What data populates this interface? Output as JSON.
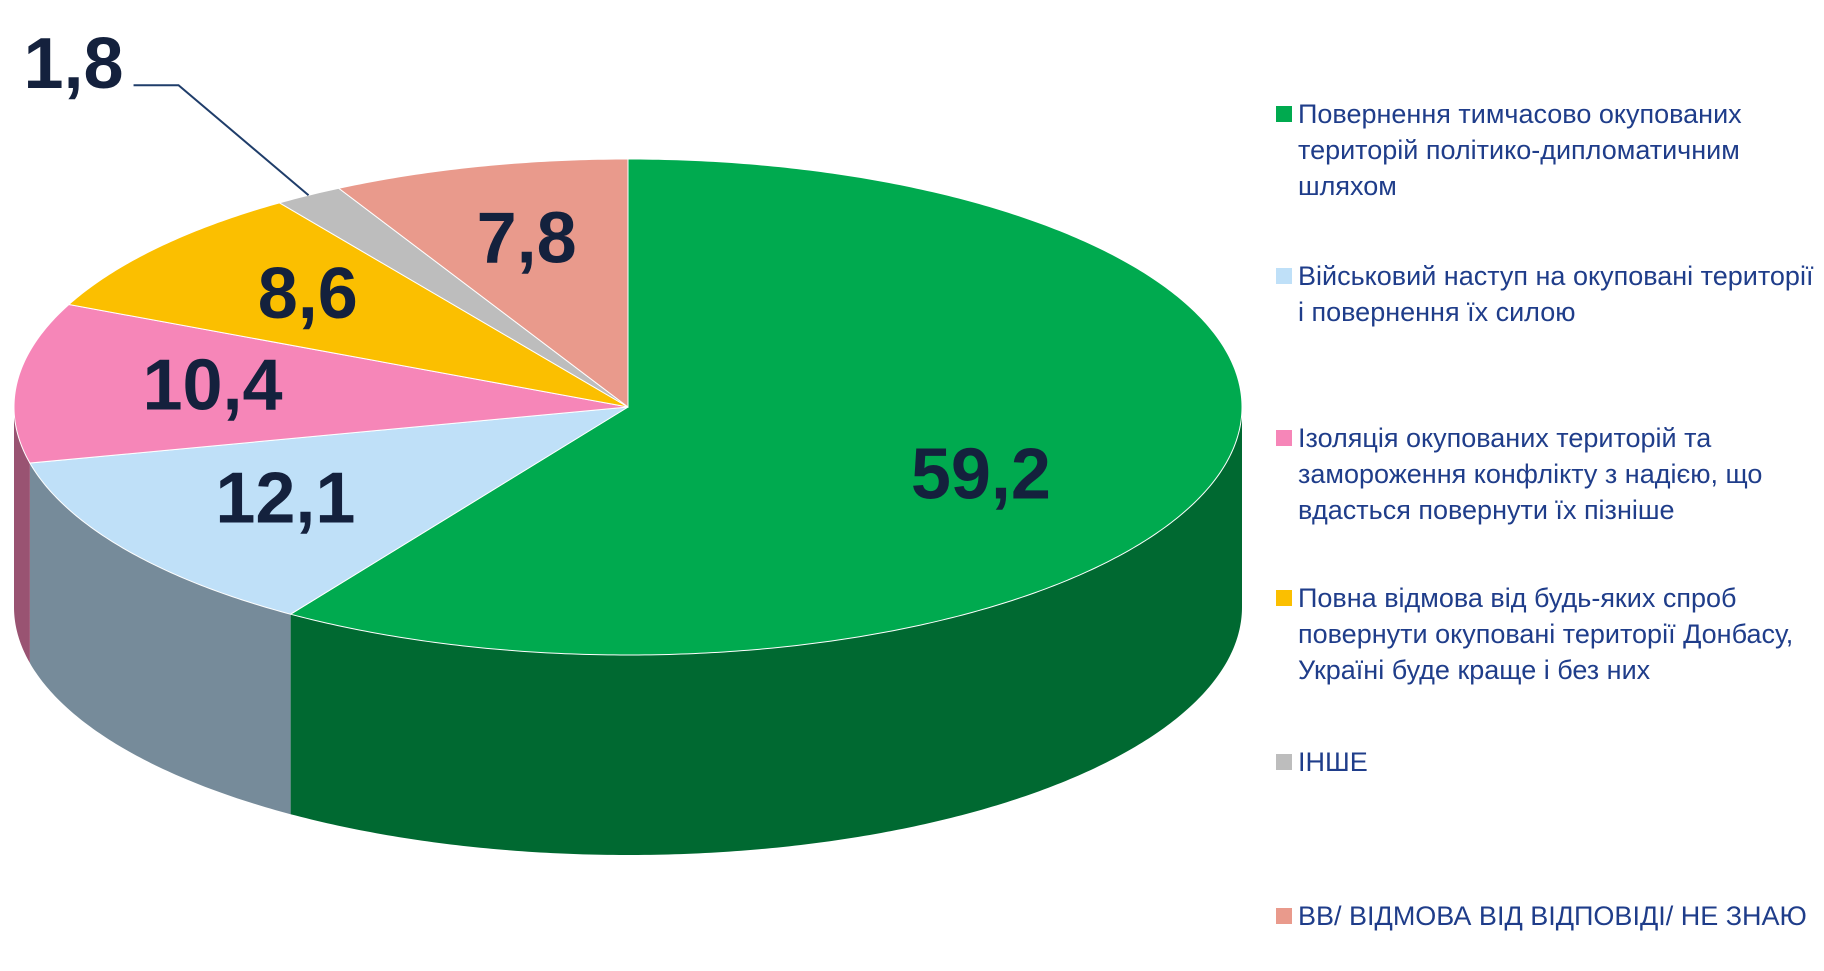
{
  "chart_data": {
    "type": "pie",
    "categories": [
      "Повернення тимчасово окупованих територій політико-дипломатичним шляхом",
      "Військовий наступ на окуповані території і повернення їх силою",
      "Ізоляція окупованих територій та замороження конфлікту з надією, що вдасться повернути їх пізніше",
      "Повна відмова від будь-яких спроб повернути окуповані території Донбасу, Україні буде краще і без них",
      "ІНШЕ",
      "ВВ/ ВІДМОВА ВІД ВІДПОВІДІ/ НЕ ЗНАЮ"
    ],
    "values": [
      59.2,
      12.1,
      10.4,
      8.6,
      1.8,
      7.8
    ],
    "value_labels": [
      "59,2",
      "12,1",
      "10,4",
      "8,6",
      "1,8",
      "7,8"
    ],
    "colors": [
      "#00aa4f",
      "#bfe0f8",
      "#f686b8",
      "#fbbf00",
      "#bdbdbd",
      "#e99a8c"
    ],
    "legend": "right"
  }
}
